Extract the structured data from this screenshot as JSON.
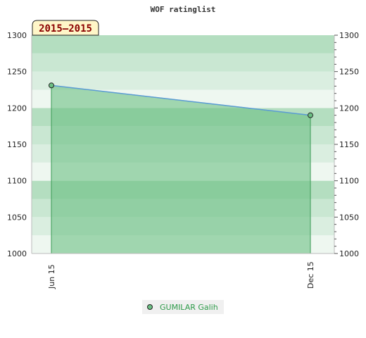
{
  "chart_data": {
    "type": "area",
    "title": "WOF ratinglist",
    "period_label": "2015–2015",
    "x": [
      "Jun 15",
      "Dec 15"
    ],
    "series": [
      {
        "name": "GUMILAR Galih",
        "values": [
          1231,
          1190
        ]
      }
    ],
    "ylim": [
      1000,
      1300
    ],
    "y_ticks": [
      1000,
      1050,
      1100,
      1150,
      1200,
      1250,
      1300
    ],
    "y_axis_left": true,
    "y_axis_right": true,
    "legend_position": "bottom-center",
    "colors": {
      "line": "#5b9bd5",
      "area_fill": "#6cc084",
      "area_stroke": "#3a9a55",
      "marker": "#3a9a55",
      "band_colors": [
        "#eef7f0",
        "#daeee0",
        "#c9e7d2",
        "#b4dec0"
      ],
      "period_box_bg": "#fff6c8"
    }
  }
}
